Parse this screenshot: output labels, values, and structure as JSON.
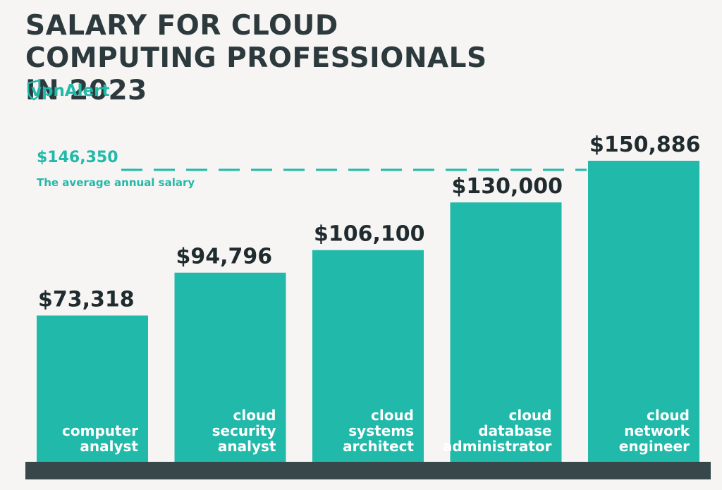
{
  "chart_data": {
    "type": "bar",
    "title": "SALARY FOR CLOUD COMPUTING PROFESSIONALS IN 2023",
    "brand": "vpnAlert",
    "categories": [
      "computer analyst",
      "cloud security analyst",
      "cloud systems architect",
      "cloud database administrator",
      "cloud network engineer"
    ],
    "values": [
      73318,
      94796,
      106100,
      130000,
      150886
    ],
    "value_labels": [
      "$73,318",
      "$94,796",
      "$106,100",
      "$130,000",
      "$150,886"
    ],
    "color": "#21b9a9",
    "reference_line": {
      "value": 146350,
      "value_label": "$146,350",
      "label": "The average annual salary"
    }
  }
}
